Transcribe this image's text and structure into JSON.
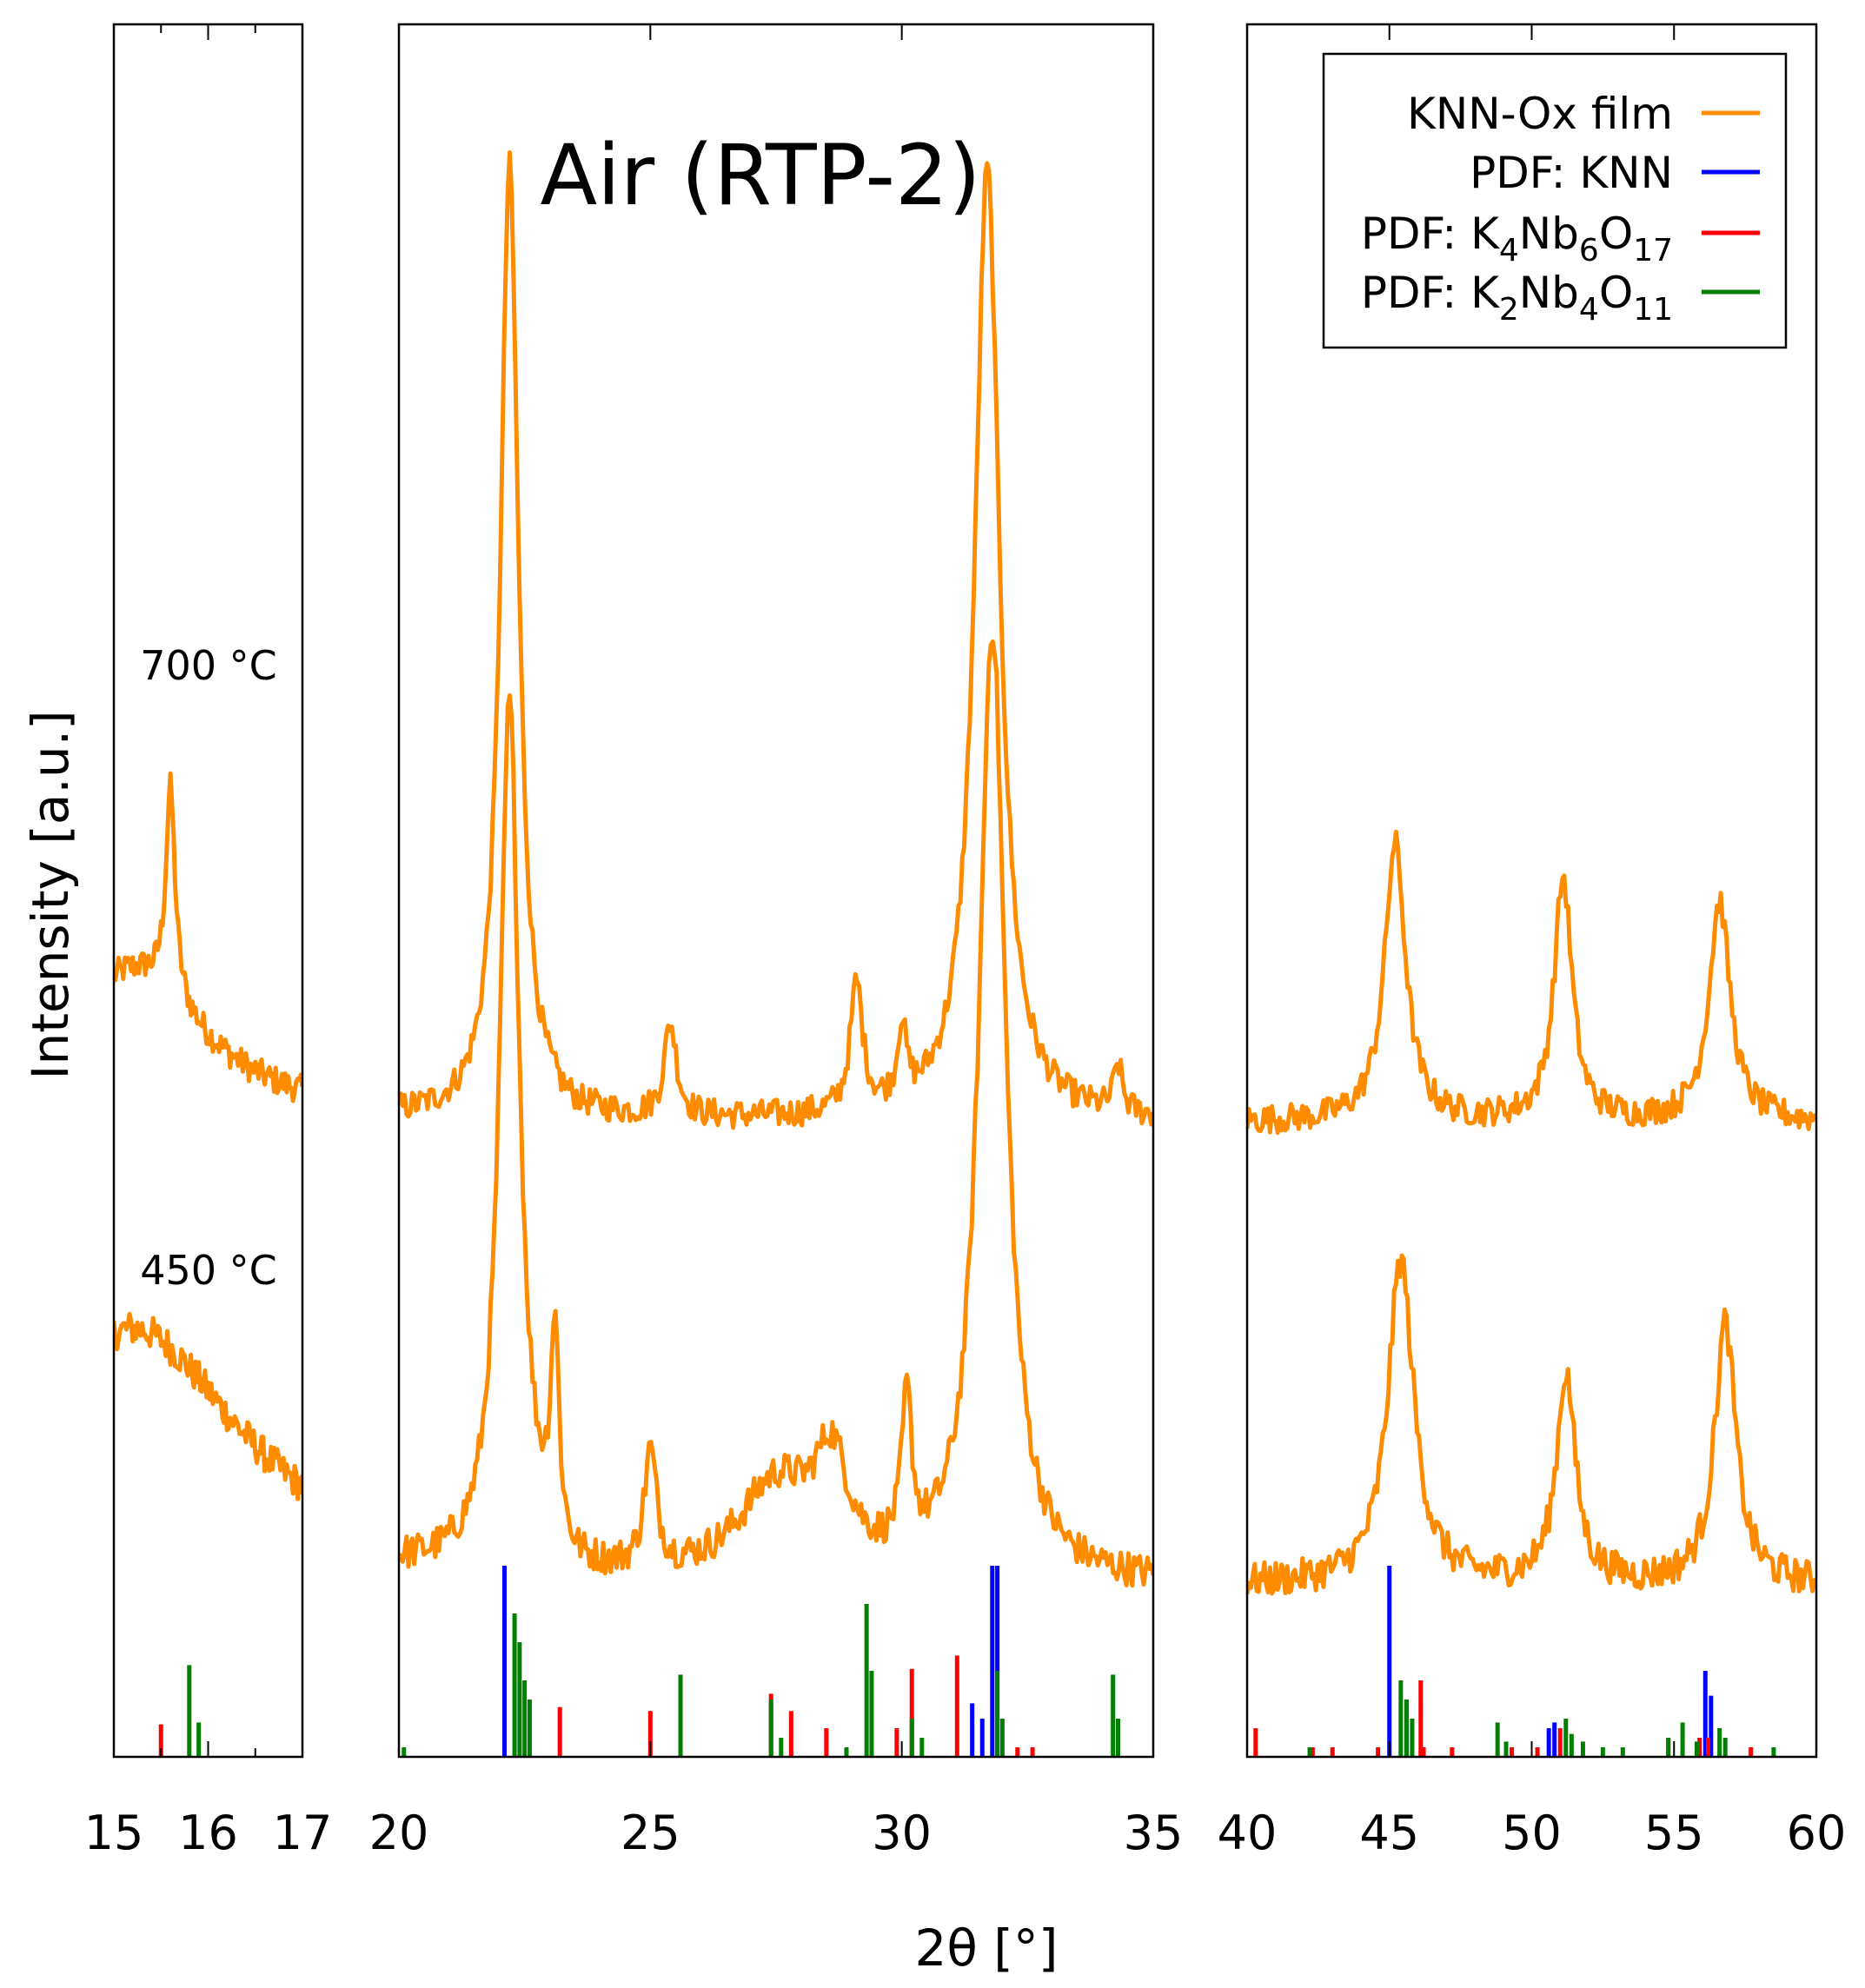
{
  "chart_data": {
    "type": "line",
    "title": "Air (RTP-2)",
    "xlabel": "2θ [°]",
    "ylabel": "Intensity [a.u.]",
    "colors": {
      "film": "#ff8c00",
      "knn": "#0000ff",
      "k4nb6o17": "#ff0000",
      "k2nb4o11": "#008000"
    },
    "panels": [
      {
        "xlim": [
          15,
          17
        ],
        "ticks": [
          15,
          16,
          17
        ],
        "tick_labels": [
          "15",
          "16",
          "17"
        ]
      },
      {
        "xlim": [
          20,
          35
        ],
        "ticks": [
          20,
          25,
          30,
          35
        ],
        "tick_labels": [
          "20",
          "25",
          "30",
          "35"
        ]
      },
      {
        "xlim": [
          40,
          60
        ],
        "ticks": [
          40,
          45,
          50,
          55,
          60
        ],
        "tick_labels": [
          "40",
          "45",
          "50",
          "55",
          "60"
        ]
      }
    ],
    "temperature_labels": [
      "700 °C",
      "450 °C"
    ],
    "series": [
      {
        "name": "KNN-Ox film (700 °C)",
        "offset": 10,
        "baseline": 1.0,
        "noise": 0.25,
        "peaks": [
          {
            "x": 15.6,
            "height": 3.6,
            "width": 0.06
          },
          {
            "x": 15.2,
            "height": 2.6,
            "width": 0.9
          },
          {
            "x": 22.2,
            "height": 16.5,
            "width": 0.22
          },
          {
            "x": 25.4,
            "height": 1.6,
            "width": 0.15
          },
          {
            "x": 29.1,
            "height": 2.2,
            "width": 0.15
          },
          {
            "x": 30.0,
            "height": 1.3,
            "width": 0.1
          },
          {
            "x": 31.7,
            "height": 16.5,
            "width": 0.3
          },
          {
            "x": 34.3,
            "height": 0.8,
            "width": 0.1
          },
          {
            "x": 45.2,
            "height": 4.8,
            "width": 0.45
          },
          {
            "x": 51.1,
            "height": 4.2,
            "width": 0.38
          },
          {
            "x": 56.6,
            "height": 3.8,
            "width": 0.45
          }
        ]
      },
      {
        "name": "KNN-Ox film (450 °C)",
        "offset": 2,
        "baseline": 1.0,
        "noise": 0.3,
        "peaks": [
          {
            "x": 15.2,
            "height": 4.4,
            "width": 1.4
          },
          {
            "x": 22.2,
            "height": 15.0,
            "width": 0.24
          },
          {
            "x": 23.1,
            "height": 3.6,
            "width": 0.1
          },
          {
            "x": 25.0,
            "height": 2.0,
            "width": 0.15
          },
          {
            "x": 27.5,
            "height": 1.6,
            "width": 0.9
          },
          {
            "x": 28.6,
            "height": 1.8,
            "width": 0.4
          },
          {
            "x": 30.1,
            "height": 2.6,
            "width": 0.12
          },
          {
            "x": 31.8,
            "height": 16.5,
            "width": 0.32
          },
          {
            "x": 45.4,
            "height": 5.6,
            "width": 0.55
          },
          {
            "x": 51.2,
            "height": 3.6,
            "width": 0.4
          },
          {
            "x": 56.8,
            "height": 4.5,
            "width": 0.45
          }
        ]
      }
    ],
    "reference_patterns": [
      {
        "name": "PDF: KNN",
        "color_key": "knn",
        "positions": [
          22.1,
          31.4,
          31.6,
          31.8,
          31.9,
          45.0,
          45.6,
          50.6,
          50.8,
          56.1,
          56.3
        ],
        "intensities": [
          100,
          28,
          20,
          100,
          100,
          100,
          30,
          15,
          18,
          45,
          32
        ]
      },
      {
        "name": "PDF: K4Nb6O17",
        "color_key": "k4nb6o17",
        "positions": [
          15.5,
          23.2,
          25.0,
          27.4,
          27.8,
          28.5,
          29.9,
          30.2,
          31.1,
          32.3,
          32.6,
          40.3,
          42.3,
          43.0,
          44.6,
          46.1,
          46.2,
          47.2,
          49.3,
          50.2,
          51.0,
          54.8,
          55.9,
          56.2,
          57.7
        ],
        "intensities": [
          17,
          26,
          24,
          33,
          24,
          15,
          15,
          46,
          53,
          5,
          5,
          15,
          5,
          5,
          5,
          40,
          5,
          5,
          5,
          5,
          15,
          10,
          10,
          10,
          5
        ]
      },
      {
        "name": "PDF: K2Nb4O11",
        "color_key": "k2nb4o11",
        "positions": [
          15.8,
          15.9,
          20.1,
          22.3,
          22.4,
          22.5,
          22.6,
          25.6,
          27.4,
          27.6,
          28.9,
          29.3,
          29.4,
          30.2,
          30.4,
          31.9,
          32.0,
          34.2,
          34.3,
          42.2,
          45.4,
          45.6,
          45.8,
          48.8,
          49.1,
          51.2,
          51.4,
          51.8,
          52.5,
          53.2,
          54.8,
          55.3,
          55.8,
          56.6,
          56.8,
          58.5
        ],
        "intensities": [
          48,
          18,
          5,
          75,
          60,
          40,
          30,
          43,
          30,
          10,
          5,
          80,
          45,
          20,
          10,
          45,
          20,
          43,
          20,
          5,
          40,
          30,
          20,
          18,
          8,
          20,
          12,
          8,
          5,
          5,
          10,
          18,
          8,
          15,
          10,
          5
        ]
      }
    ],
    "legend": {
      "position": "top-right",
      "entries": [
        {
          "label": "KNN-Ox film",
          "color_key": "film"
        },
        {
          "label": "PDF: KNN",
          "color_key": "knn"
        },
        {
          "label": "PDF: K4Nb6O17",
          "color_key": "k4nb6o17"
        },
        {
          "label": "PDF: K2Nb4O11",
          "color_key": "k2nb4o11"
        }
      ]
    }
  }
}
